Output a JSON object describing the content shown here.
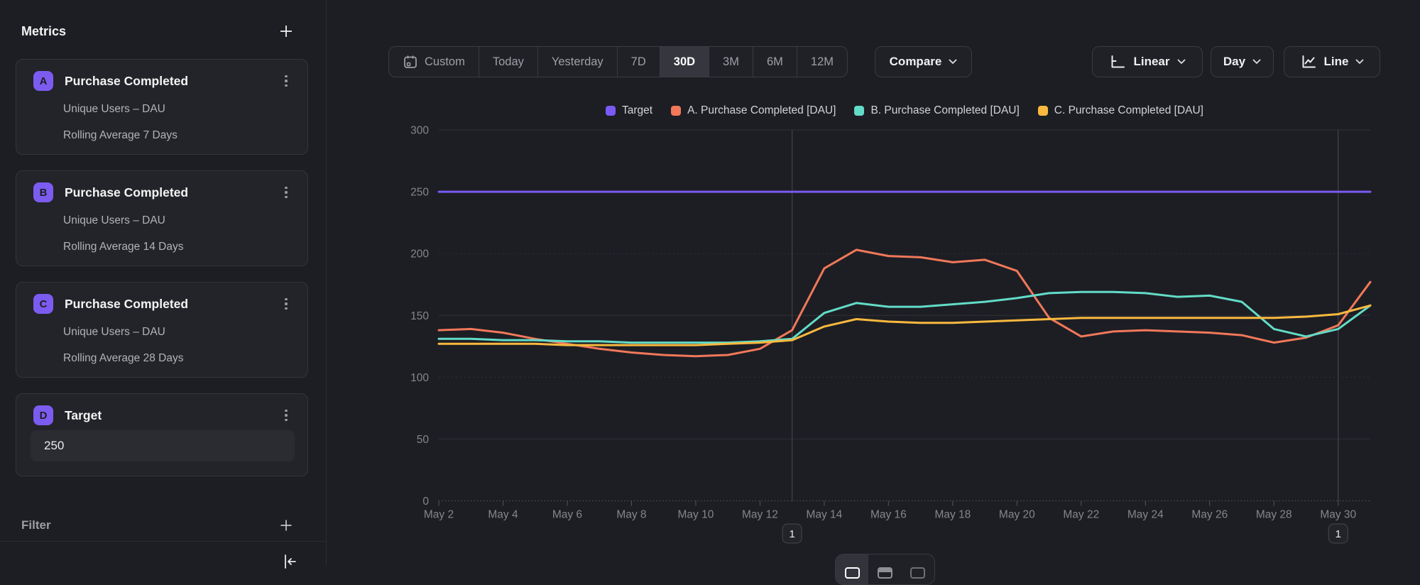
{
  "colors": {
    "accent": "#7c5cf0",
    "background": "#1d1e23",
    "card_background": "#232429",
    "grid": "#31323a",
    "axis_text": "#85868c"
  },
  "sidebar": {
    "title": "Metrics",
    "metrics": [
      {
        "letter": "A",
        "title": "Purchase Completed",
        "line1": "Unique Users – DAU",
        "line2": "Rolling Average 7 Days"
      },
      {
        "letter": "B",
        "title": "Purchase Completed",
        "line1": "Unique Users – DAU",
        "line2": "Rolling Average 14 Days"
      },
      {
        "letter": "C",
        "title": "Purchase Completed",
        "line1": "Unique Users – DAU",
        "line2": "Rolling Average 28 Days"
      },
      {
        "letter": "D",
        "title": "Target",
        "value": "250"
      }
    ],
    "filter_label": "Filter"
  },
  "toolbar": {
    "ranges": [
      {
        "label": "Custom",
        "icon": "calendar-icon"
      },
      {
        "label": "Today"
      },
      {
        "label": "Yesterday"
      },
      {
        "label": "7D"
      },
      {
        "label": "30D",
        "selected": true
      },
      {
        "label": "3M"
      },
      {
        "label": "6M"
      },
      {
        "label": "12M"
      }
    ],
    "compare_label": "Compare",
    "scale_label": "Linear",
    "granularity_label": "Day",
    "chart_type_label": "Line"
  },
  "chart_data": {
    "type": "line",
    "x": [
      "May 2",
      "May 3",
      "May 4",
      "May 5",
      "May 6",
      "May 7",
      "May 8",
      "May 9",
      "May 10",
      "May 11",
      "May 12",
      "May 13",
      "May 14",
      "May 15",
      "May 16",
      "May 17",
      "May 18",
      "May 19",
      "May 20",
      "May 21",
      "May 22",
      "May 23",
      "May 24",
      "May 25",
      "May 26",
      "May 27",
      "May 28",
      "May 29",
      "May 30",
      "May 31"
    ],
    "x_tick_every": 2,
    "ylim": [
      0,
      300
    ],
    "ytick_step": 50,
    "grid": true,
    "legend_position": "top",
    "series": [
      {
        "name": "Target",
        "color": "#7a5af5",
        "constant": 250
      },
      {
        "name": "A. Purchase Completed [DAU]",
        "color": "#f1785a",
        "values": [
          138,
          139,
          136,
          131,
          127,
          123,
          120,
          118,
          117,
          118,
          123,
          138,
          188,
          203,
          198,
          197,
          193,
          195,
          186,
          148,
          133,
          137,
          138,
          137,
          136,
          134,
          128,
          132,
          142,
          177
        ]
      },
      {
        "name": "B. Purchase Completed [DAU]",
        "color": "#62dcc8",
        "values": [
          131,
          131,
          130,
          130,
          129,
          129,
          128,
          128,
          128,
          128,
          129,
          131,
          152,
          160,
          157,
          157,
          159,
          161,
          164,
          168,
          169,
          169,
          168,
          165,
          166,
          161,
          139,
          133,
          139,
          158
        ]
      },
      {
        "name": "C. Purchase Completed [DAU]",
        "color": "#f9b93f",
        "values": [
          127,
          127,
          127,
          127,
          126,
          126,
          126,
          126,
          126,
          127,
          128,
          130,
          141,
          147,
          145,
          144,
          144,
          145,
          146,
          147,
          148,
          148,
          148,
          148,
          148,
          148,
          148,
          149,
          151,
          158
        ]
      }
    ],
    "annotations": [
      {
        "x_index": 11,
        "label": "1"
      },
      {
        "x_index": 28,
        "label": "1"
      }
    ]
  }
}
